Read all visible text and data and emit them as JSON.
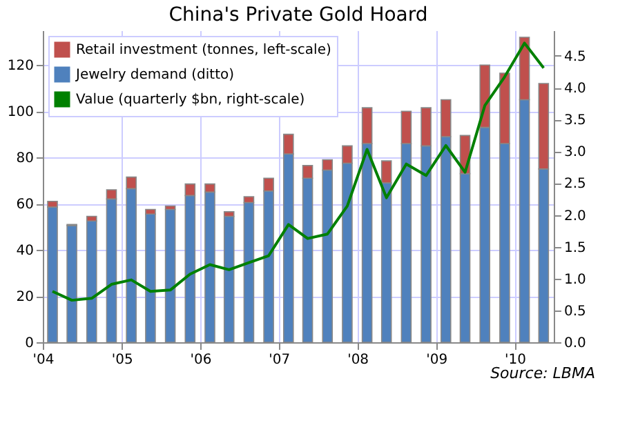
{
  "chart_data": {
    "type": "bar",
    "title": "China's Private Gold Hoard",
    "stacked": true,
    "x": [
      "2004-02-15",
      "2004-05-15",
      "2004-08-15",
      "2004-11-15",
      "2005-02-15",
      "2005-05-15",
      "2005-08-15",
      "2005-11-15",
      "2006-02-15",
      "2006-05-15",
      "2006-08-15",
      "2006-11-15",
      "2007-02-15",
      "2007-05-15",
      "2007-08-15",
      "2007-11-15",
      "2008-02-15",
      "2008-05-15",
      "2008-08-15",
      "2008-11-15",
      "2009-02-15",
      "2009-05-15",
      "2009-08-15",
      "2009-11-15",
      "2010-02-15",
      "2010-05-15"
    ],
    "series": [
      {
        "name": "Jewelry demand (ditto)",
        "color": "#4f81bd",
        "values": [
          58.5,
          50.5,
          52.5,
          62,
          66.5,
          55.5,
          57.5,
          63.5,
          65,
          54.5,
          60.5,
          65.5,
          81.5,
          71,
          74.5,
          77.5,
          86,
          69,
          86,
          85,
          89,
          73,
          93,
          86,
          105,
          75
        ]
      },
      {
        "name": "Retail investment (tonnes, left-scale)",
        "color": "#c0504d",
        "values": [
          2.5,
          0.5,
          2,
          4,
          5,
          2,
          1.5,
          5,
          3.5,
          2,
          2.5,
          5.5,
          8.5,
          5.5,
          4.5,
          7.5,
          15.5,
          9.5,
          14,
          16.5,
          16,
          16.5,
          27,
          30.5,
          27,
          37
        ]
      },
      {
        "name": "Value (quarterly $bn, right-scale)",
        "color": "#008000",
        "type": "line",
        "axis": "y2",
        "values": [
          0.8,
          0.66,
          0.69,
          0.91,
          0.98,
          0.8,
          0.82,
          1.07,
          1.22,
          1.14,
          1.25,
          1.36,
          1.85,
          1.63,
          1.7,
          2.14,
          3.03,
          2.27,
          2.8,
          2.62,
          3.09,
          2.67,
          3.72,
          4.17,
          4.7,
          4.31
        ]
      }
    ],
    "xlim": [
      "2004-01-01",
      "2010-07-01"
    ],
    "xticks": [
      {
        "value": "2004-01-01",
        "label": "'04"
      },
      {
        "value": "2005-01-01",
        "label": "'05"
      },
      {
        "value": "2006-01-01",
        "label": "'06"
      },
      {
        "value": "2007-01-01",
        "label": "'07"
      },
      {
        "value": "2008-01-01",
        "label": "'08"
      },
      {
        "value": "2009-01-01",
        "label": "'09"
      },
      {
        "value": "2010-01-01",
        "label": "'10"
      }
    ],
    "ylim": [
      0,
      135
    ],
    "yticks": [
      0,
      20,
      40,
      60,
      80,
      100,
      120
    ],
    "y2lim": [
      0,
      4.9
    ],
    "y2ticks": [
      {
        "value": 0,
        "label": "0.0"
      },
      {
        "value": 0.5,
        "label": "0.5"
      },
      {
        "value": 1,
        "label": "1.0"
      },
      {
        "value": 1.5,
        "label": "1.5"
      },
      {
        "value": 2,
        "label": "2.0"
      },
      {
        "value": 2.5,
        "label": "2.5"
      },
      {
        "value": 3,
        "label": "3.0"
      },
      {
        "value": 3.5,
        "label": "3.5"
      },
      {
        "value": 4,
        "label": "4.0"
      },
      {
        "value": 4.5,
        "label": "4.5"
      }
    ],
    "grid": true,
    "legend": "top left",
    "annotations": [
      "Source: LBMA"
    ]
  }
}
